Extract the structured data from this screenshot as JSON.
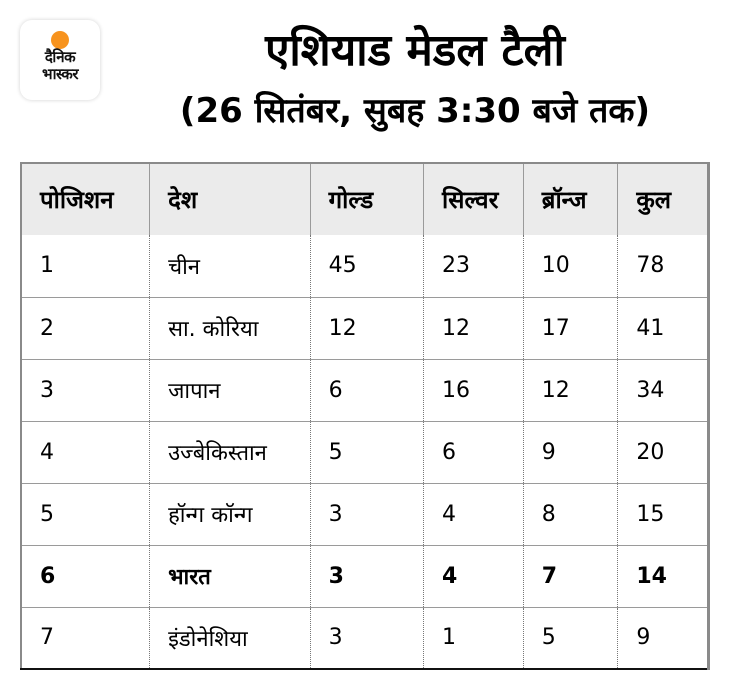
{
  "logo": {
    "line1": "दैनिक",
    "line2": "भास्कर",
    "accent_color": "#f7931e"
  },
  "header": {
    "title": "एशियाड मेडल टैली",
    "subtitle": "(26 सितंबर, सुबह 3:30 बजे तक)"
  },
  "table": {
    "columns": [
      "पोजिशन",
      "देश",
      "गोल्ड",
      "सिल्वर",
      "ब्रॉन्ज",
      "कुल"
    ],
    "rows": [
      {
        "position": "1",
        "country": "चीन",
        "gold": "45",
        "silver": "23",
        "bronze": "10",
        "total": "78"
      },
      {
        "position": "2",
        "country": "सा. कोरिया",
        "gold": "12",
        "silver": "12",
        "bronze": "17",
        "total": "41"
      },
      {
        "position": "3",
        "country": "जापान",
        "gold": "6",
        "silver": "16",
        "bronze": "12",
        "total": "34"
      },
      {
        "position": "4",
        "country": "उज्बेकिस्तान",
        "gold": "5",
        "silver": "6",
        "bronze": "9",
        "total": "20"
      },
      {
        "position": "5",
        "country": "हॉन्ग कॉन्ग",
        "gold": "3",
        "silver": "4",
        "bronze": "8",
        "total": "15"
      },
      {
        "position": "6",
        "country": "भारत",
        "gold": "3",
        "silver": "4",
        "bronze": "7",
        "total": "14",
        "highlighted": true
      },
      {
        "position": "7",
        "country": "इंडोनेशिया",
        "gold": "3",
        "silver": "1",
        "bronze": "5",
        "total": "9"
      }
    ]
  },
  "chart_data": {
    "type": "table",
    "title": "एशियाड मेडल टैली",
    "subtitle": "(26 सितंबर, सुबह 3:30 बजे तक)",
    "columns": [
      "पोजिशन",
      "देश",
      "गोल्ड",
      "सिल्वर",
      "ब्रॉन्ज",
      "कुल"
    ],
    "rows": [
      [
        1,
        "चीन",
        45,
        23,
        10,
        78
      ],
      [
        2,
        "सा. कोरिया",
        12,
        12,
        17,
        41
      ],
      [
        3,
        "जापान",
        6,
        16,
        12,
        34
      ],
      [
        4,
        "उज्बेकिस्तान",
        5,
        6,
        9,
        20
      ],
      [
        5,
        "हॉन्ग कॉन्ग",
        3,
        4,
        8,
        15
      ],
      [
        6,
        "भारत",
        3,
        4,
        7,
        14
      ],
      [
        7,
        "इंडोनेशिया",
        3,
        1,
        5,
        9
      ]
    ],
    "highlighted_row": 6
  }
}
